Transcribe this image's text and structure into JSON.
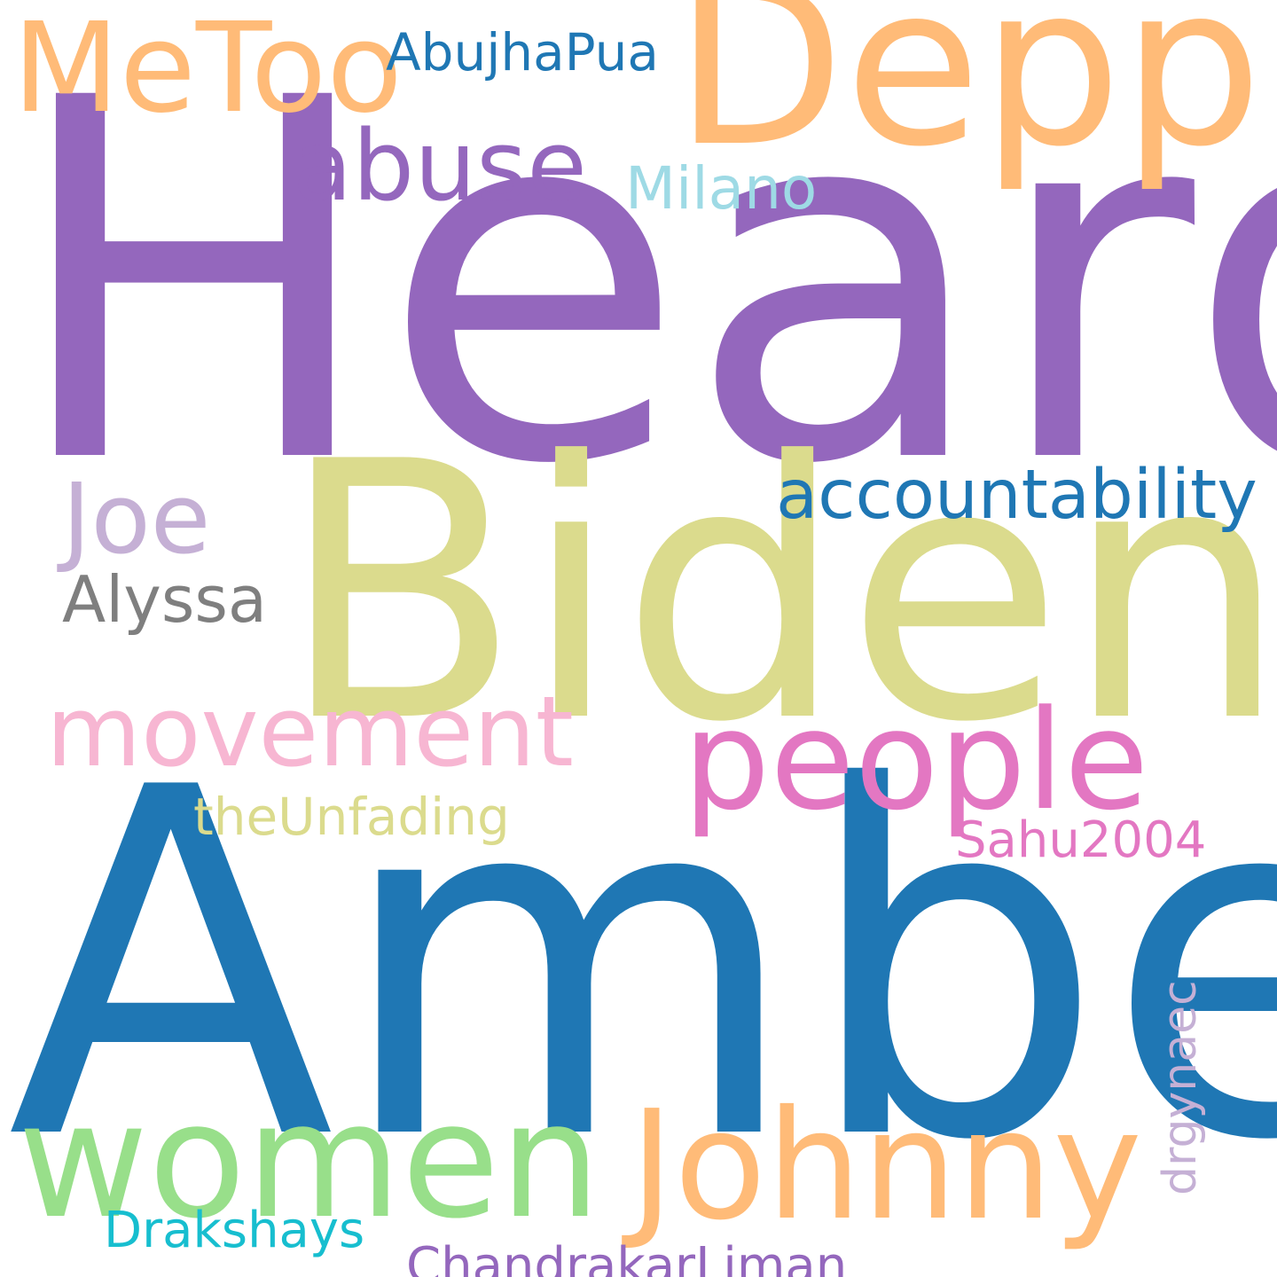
{
  "words": [
    {
      "text": "Heard",
      "color": "#9467bd"
    },
    {
      "text": "Amber",
      "color": "#1f77b4"
    },
    {
      "text": "Biden",
      "color": "#dbdb8d"
    },
    {
      "text": "Depp",
      "color": "#ffbb78"
    },
    {
      "text": "women",
      "color": "#98df8a"
    },
    {
      "text": "Johnny",
      "color": "#ffbb78"
    },
    {
      "text": "MeToo",
      "color": "#ffbb78"
    },
    {
      "text": "people",
      "color": "#e377c2"
    },
    {
      "text": "abuse",
      "color": "#9467bd"
    },
    {
      "text": "movement",
      "color": "#f7b6d2"
    },
    {
      "text": "Joe",
      "color": "#c5b0d5"
    },
    {
      "text": "accountability",
      "color": "#1f77b4"
    },
    {
      "text": "Alyssa",
      "color": "#7f7f7f"
    },
    {
      "text": "Milano",
      "color": "#9edae5"
    },
    {
      "text": "AbujhaPua",
      "color": "#1f77b4"
    },
    {
      "text": "theUnfading",
      "color": "#dbdb8d"
    },
    {
      "text": "Sahu2004",
      "color": "#e377c2"
    },
    {
      "text": "Drakshays",
      "color": "#17becf"
    },
    {
      "text": "ChandrakarLiman",
      "color": "#9467bd"
    },
    {
      "text": "drgynaec",
      "color": "#c5b0d5"
    }
  ]
}
